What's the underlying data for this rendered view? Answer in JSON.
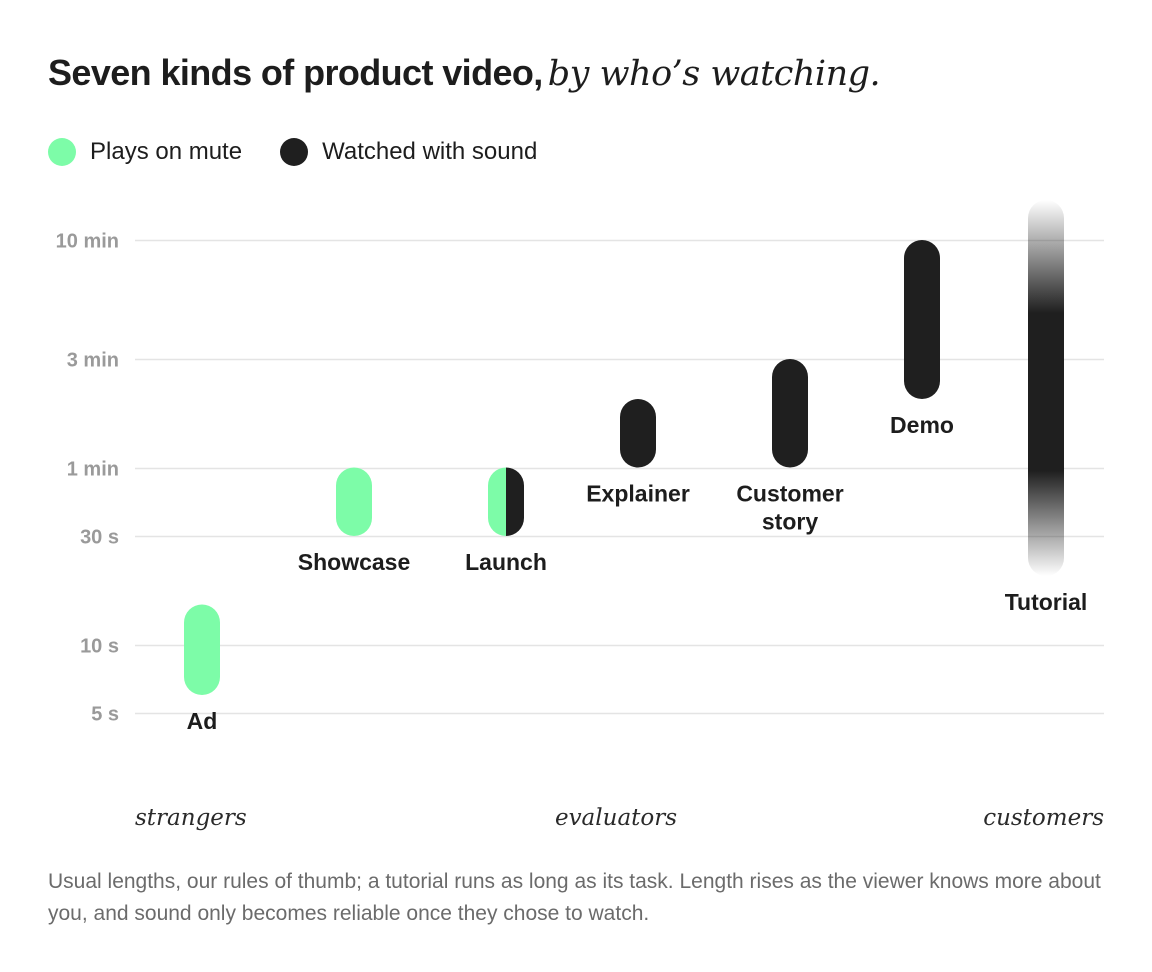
{
  "title": {
    "main": "Seven kinds of product video",
    "separator": ",",
    "subtitle": "by who’s watching."
  },
  "legend": [
    {
      "label": "Plays on mute",
      "color": "#7dfca8"
    },
    {
      "label": "Watched with sound",
      "color": "#1f1f1f"
    }
  ],
  "colors": {
    "mute": "#7dfca8",
    "sound": "#1f1f1f",
    "grid": "#e4e4e4",
    "tick": "#9a9a9a"
  },
  "chart_data": {
    "type": "range-bar",
    "y_scale": "log",
    "y_unit": "seconds",
    "ylim": [
      5,
      600
    ],
    "y_ticks": [
      {
        "value": 600,
        "label": "10 min"
      },
      {
        "value": 180,
        "label": "3 min"
      },
      {
        "value": 60,
        "label": "1 min"
      },
      {
        "value": 30,
        "label": "30 s"
      },
      {
        "value": 10,
        "label": "10 s"
      },
      {
        "value": 5,
        "label": "5 s"
      }
    ],
    "x_axis": {
      "type": "audience familiarity",
      "ticks": [
        "strangers",
        "evaluators",
        "customers"
      ]
    },
    "grid": true,
    "bars": [
      {
        "name": "Ad",
        "min": 6,
        "max": 15,
        "sound": "mute"
      },
      {
        "name": "Showcase",
        "min": 30,
        "max": 60,
        "sound": "mute"
      },
      {
        "name": "Launch",
        "min": 30,
        "max": 60,
        "sound": "both"
      },
      {
        "name": "Explainer",
        "min": 60,
        "max": 120,
        "sound": "sound"
      },
      {
        "name": "Customer story",
        "min": 60,
        "max": 180,
        "sound": "sound"
      },
      {
        "name": "Demo",
        "min": 120,
        "max": 600,
        "sound": "sound"
      },
      {
        "name": "Tutorial",
        "min": 20,
        "max": 720,
        "sound": "sound",
        "open_ended": true
      }
    ]
  },
  "caption": "Usual lengths, our rules of thumb; a tutorial runs as long as its task. Length rises as the viewer knows more about you, and sound only becomes reliable once they chose to watch."
}
